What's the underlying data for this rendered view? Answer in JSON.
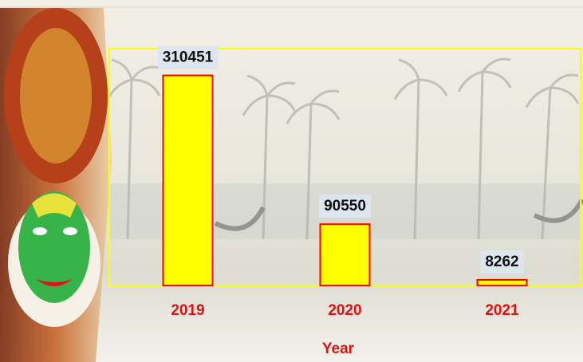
{
  "chart_data": {
    "type": "bar",
    "x_label": "Year",
    "categories": [
      "2019",
      "2020",
      "2021"
    ],
    "values": [
      310451,
      90550,
      8262
    ],
    "color": "#ffff00",
    "edgecolor": "#ff0000",
    "ylim": [
      0,
      350000
    ]
  }
}
